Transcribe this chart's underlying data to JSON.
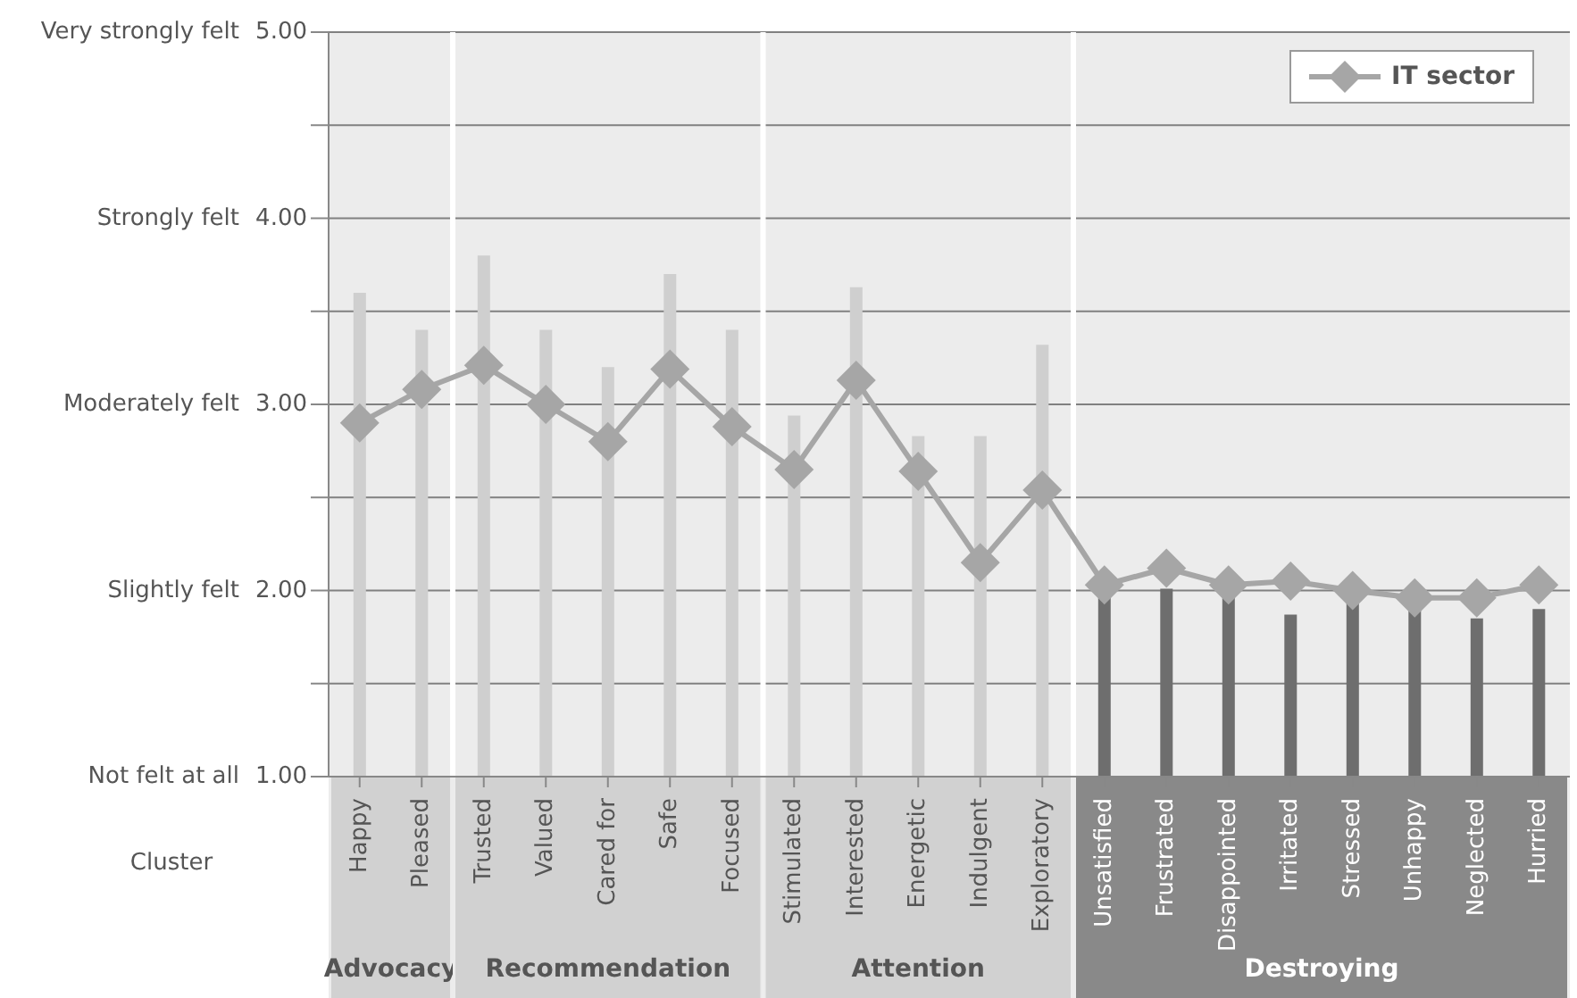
{
  "chart_data": {
    "type": "bar",
    "categories": [
      "Happy",
      "Pleased",
      "Trusted",
      "Valued",
      "Cared for",
      "Safe",
      "Focused",
      "Stimulated",
      "Interested",
      "Energetic",
      "Indulgent",
      "Exploratory",
      "Unsatisfied",
      "Frustrated",
      "Disappointed",
      "Irritated",
      "Stressed",
      "Unhappy",
      "Neglected",
      "Hurried"
    ],
    "series": [
      {
        "colors": [
          "#cfcfcf",
          "#cfcfcf",
          "#cfcfcf",
          "#cfcfcf",
          "#cfcfcf",
          "#cfcfcf",
          "#cfcfcf",
          "#cfcfcf",
          "#cfcfcf",
          "#cfcfcf",
          "#cfcfcf",
          "#cfcfcf",
          "#6e6e6e",
          "#6e6e6e",
          "#6e6e6e",
          "#6e6e6e",
          "#6e6e6e",
          "#6e6e6e",
          "#6e6e6e",
          "#6e6e6e"
        ],
        "values": [
          3.6,
          3.4,
          3.8,
          3.4,
          3.2,
          3.7,
          3.4,
          2.94,
          3.63,
          2.83,
          2.83,
          3.32,
          1.96,
          2.01,
          1.96,
          1.87,
          1.94,
          1.9,
          1.85,
          1.9
        ]
      },
      {
        "type": "line",
        "name": "IT sector",
        "color": "#a6a6a6",
        "values": [
          2.9,
          3.08,
          3.21,
          3.0,
          2.8,
          3.19,
          2.88,
          2.65,
          3.13,
          2.64,
          2.15,
          2.54,
          2.03,
          2.12,
          2.03,
          2.05,
          2.0,
          1.96,
          1.96,
          2.03
        ]
      }
    ],
    "ylim": [
      1,
      5
    ],
    "yticks": [
      {
        "value": 1,
        "label": "1.00"
      },
      {
        "value": 1.5,
        "label": null
      },
      {
        "value": 2,
        "label": "2.00"
      },
      {
        "value": 2.5,
        "label": null
      },
      {
        "value": 3,
        "label": "3.00"
      },
      {
        "value": 3.5,
        "label": null
      },
      {
        "value": 4,
        "label": "4.00"
      },
      {
        "value": 4.5,
        "label": null
      },
      {
        "value": 5,
        "label": "5.00"
      }
    ],
    "grid": "y",
    "legend": "top right",
    "marker": "diamond",
    "line_style": "solid",
    "bands": [
      {
        "axis": "x",
        "from": "Happy",
        "to": "Pleased",
        "label": "Advocacy",
        "color": "#ececec"
      },
      {
        "axis": "x",
        "from": "Trusted",
        "to": "Focused",
        "label": "Recommendation",
        "color": "#ececec"
      },
      {
        "axis": "x",
        "from": "Stimulated",
        "to": "Exploratory",
        "label": "Attention",
        "color": "#ececec"
      },
      {
        "axis": "x",
        "from": "Unsatisfied",
        "to": "Hurried",
        "label": "Destroying",
        "color": "#ececec"
      }
    ],
    "annotations": [
      "Cluster",
      "Not felt at all",
      "Slightly felt",
      "Moderately felt",
      "Strongly felt",
      "Very strongly felt"
    ]
  }
}
